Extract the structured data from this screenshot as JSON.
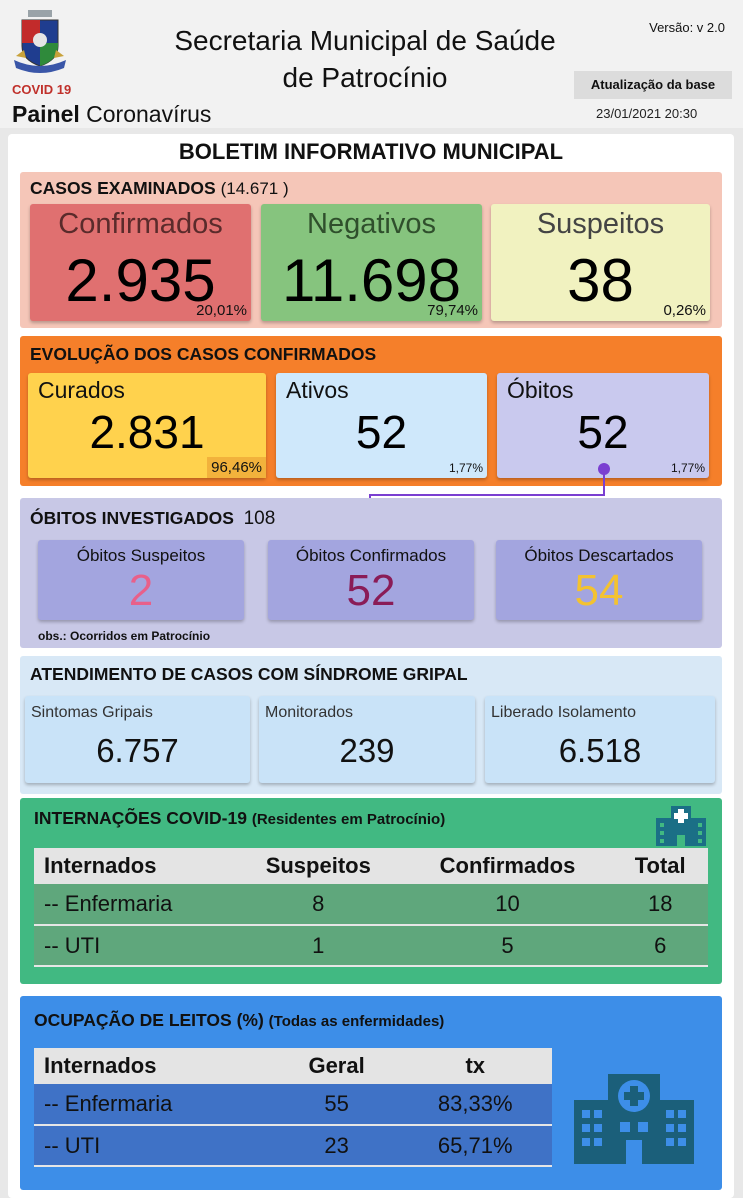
{
  "header": {
    "covid_tag": "COVID 19",
    "painel_bold": "Painel",
    "painel_rest": " Coronavírus",
    "org_line1": "Secretaria Municipal de Saúde",
    "org_line2": "de Patrocínio",
    "version": "Versão: v 2.0",
    "update_label": "Atualização da base",
    "update_date": "23/01/2021 20:30"
  },
  "board_title": "BOLETIM INFORMATIVO MUNICIPAL",
  "casos": {
    "title": "CASOS EXAMINADOS",
    "total": "(14.671  )",
    "cards": [
      {
        "label": "Confirmados",
        "value": "2.935",
        "pct": "20,01%",
        "bg": "#e07070",
        "label_color": "#5a2b2b"
      },
      {
        "label": "Negativos",
        "value": "11.698",
        "pct": "79,74%",
        "bg": "#86c47e",
        "label_color": "#2f4f2c"
      },
      {
        "label": "Suspeitos",
        "value": "38",
        "pct": "0,26%",
        "bg": "#f1f2c0",
        "label_color": "#444444"
      }
    ]
  },
  "evolucao": {
    "title": "EVOLUÇÃO DOS CASOS CONFIRMADOS",
    "cards": [
      {
        "label": "Curados",
        "value": "2.831",
        "pct": "96,46%",
        "bg": "#ffd24d"
      },
      {
        "label": "Ativos",
        "value": "52",
        "pct": "1,77%",
        "bg": "#cfe8fb"
      },
      {
        "label": "Óbitos",
        "value": "52",
        "pct": "1,77%",
        "bg": "#c9c9ee"
      }
    ]
  },
  "obitos": {
    "title": "ÓBITOS INVESTIGADOS",
    "total": "108",
    "cards": [
      {
        "label": "Óbitos Suspeitos",
        "value": "2",
        "color": "#e8608a"
      },
      {
        "label": "Óbitos Confirmados",
        "value": "52",
        "color": "#8a1c57"
      },
      {
        "label": "Óbitos Descartados",
        "value": "54",
        "color": "#f3c230"
      }
    ],
    "obs": "obs.: Ocorridos em Patrocínio"
  },
  "atendimento": {
    "title": "ATENDIMENTO DE CASOS COM SÍNDROME GRIPAL",
    "cards": [
      {
        "label": "Sintomas Gripais",
        "value": "6.757"
      },
      {
        "label": "Monitorados",
        "value": "239"
      },
      {
        "label": "Liberado Isolamento",
        "value": "6.518"
      }
    ]
  },
  "internacoes": {
    "title": "INTERNAÇÕES COVID-19",
    "subtitle": "(Residentes em Patrocínio)",
    "icon": "hospital-icon",
    "headers": [
      "Internados",
      "Suspeitos",
      "Confirmados",
      "Total"
    ],
    "rows": [
      [
        "-- Enfermaria",
        "8",
        "10",
        "18"
      ],
      [
        "-- UTI",
        "1",
        "5",
        "6"
      ]
    ]
  },
  "ocupacao": {
    "title": "OCUPAÇÃO DE LEITOS (%)",
    "subtitle": "(Todas as enfermidades)",
    "icon": "hospital-icon",
    "headers": [
      "Internados",
      "Geral",
      "tx"
    ],
    "rows": [
      [
        "-- Enfermaria",
        "55",
        "83,33%"
      ],
      [
        "-- UTI",
        "23",
        "65,71%"
      ]
    ]
  }
}
